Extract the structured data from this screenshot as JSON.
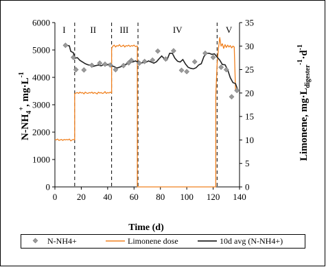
{
  "chart_data": {
    "type": "line",
    "x_axis": {
      "label": "Time (d)",
      "min": 0,
      "max": 140,
      "ticks": [
        0,
        20,
        40,
        60,
        80,
        100,
        120,
        140
      ]
    },
    "y_axis_left": {
      "label_main": "N-NH",
      "label_sub": "4",
      "label_sup": "+",
      "label_tail": ", mg·L",
      "label_tail_sup": "-1",
      "min": 0,
      "max": 6000,
      "ticks": [
        0,
        1000,
        2000,
        3000,
        4000,
        5000,
        6000
      ]
    },
    "y_axis_right": {
      "label_main": "Limonene, mg·L",
      "label_sub": "digester",
      "label_sup1": "-1",
      "label_mid": "·d",
      "label_sup2": "-1",
      "min": 0,
      "max": 35,
      "ticks": [
        0,
        5,
        10,
        15,
        20,
        25,
        30,
        35
      ]
    },
    "phases": [
      {
        "label": "I",
        "x_center": 7
      },
      {
        "label": "II",
        "x_center": 29
      },
      {
        "label": "III",
        "x_center": 52.5
      },
      {
        "label": "IV",
        "x_center": 93
      },
      {
        "label": "V",
        "x_center": 132
      }
    ],
    "phase_boundaries": [
      15,
      43,
      63,
      123
    ],
    "legend": {
      "position": "bottom",
      "items": [
        "N-NH4+",
        "Limonene dose",
        "10d avg (N-NH4+)"
      ]
    },
    "series": [
      {
        "name": "N-NH4+",
        "axis": "left",
        "style": "markers",
        "color": "#999999",
        "points": [
          [
            8,
            5170
          ],
          [
            14,
            4730
          ],
          [
            16,
            4280
          ],
          [
            22,
            4270
          ],
          [
            28,
            4440
          ],
          [
            34,
            4520
          ],
          [
            38,
            4480
          ],
          [
            42,
            4450
          ],
          [
            46,
            4280
          ],
          [
            52,
            4430
          ],
          [
            56,
            4530
          ],
          [
            58,
            4620
          ],
          [
            64,
            4520
          ],
          [
            68,
            4580
          ],
          [
            74,
            4630
          ],
          [
            78,
            4960
          ],
          [
            84,
            4670
          ],
          [
            90,
            4970
          ],
          [
            96,
            4260
          ],
          [
            100,
            4210
          ],
          [
            106,
            4570
          ],
          [
            114,
            4880
          ],
          [
            120,
            4730
          ],
          [
            126,
            4370
          ],
          [
            130,
            4280
          ],
          [
            134,
            3290
          ],
          [
            138,
            3520
          ]
        ]
      },
      {
        "name": "Limonene dose",
        "axis": "right",
        "style": "line",
        "color": "#f0801e",
        "points": [
          [
            0,
            10.1
          ],
          [
            1,
            10.0
          ],
          [
            2,
            10.2
          ],
          [
            3,
            9.9
          ],
          [
            4,
            10.0
          ],
          [
            5,
            10.1
          ],
          [
            6,
            9.9
          ],
          [
            7,
            10.1
          ],
          [
            8,
            10.0
          ],
          [
            9,
            10.1
          ],
          [
            10,
            10.0
          ],
          [
            11,
            10.2
          ],
          [
            12,
            9.8
          ],
          [
            13,
            10.0
          ],
          [
            14,
            10.1
          ],
          [
            15,
            10.0
          ],
          [
            15,
            19.8
          ],
          [
            16,
            20.0
          ],
          [
            17,
            20.1
          ],
          [
            18,
            19.9
          ],
          [
            19,
            20.2
          ],
          [
            20,
            20.0
          ],
          [
            21,
            20.1
          ],
          [
            22,
            19.8
          ],
          [
            23,
            20.2
          ],
          [
            24,
            20.0
          ],
          [
            25,
            19.9
          ],
          [
            26,
            20.1
          ],
          [
            27,
            20.0
          ],
          [
            28,
            20.2
          ],
          [
            29,
            19.9
          ],
          [
            30,
            20.1
          ],
          [
            31,
            20.0
          ],
          [
            32,
            19.8
          ],
          [
            33,
            20.2
          ],
          [
            34,
            20.0
          ],
          [
            35,
            20.1
          ],
          [
            36,
            19.9
          ],
          [
            37,
            20.0
          ],
          [
            38,
            20.3
          ],
          [
            39,
            19.9
          ],
          [
            40,
            20.1
          ],
          [
            41,
            20.0
          ],
          [
            42,
            20.2
          ],
          [
            43,
            20.0
          ],
          [
            43,
            29.5
          ],
          [
            44,
            30.0
          ],
          [
            45,
            30.2
          ],
          [
            46,
            29.8
          ],
          [
            47,
            30.1
          ],
          [
            48,
            30.0
          ],
          [
            49,
            30.3
          ],
          [
            50,
            29.9
          ],
          [
            51,
            30.0
          ],
          [
            52,
            30.2
          ],
          [
            53,
            29.8
          ],
          [
            54,
            30.1
          ],
          [
            55,
            30.0
          ],
          [
            56,
            30.2
          ],
          [
            57,
            29.9
          ],
          [
            58,
            30.1
          ],
          [
            59,
            30.0
          ],
          [
            60,
            30.2
          ],
          [
            61,
            29.9
          ],
          [
            62,
            30.0
          ],
          [
            62.5,
            30.0
          ],
          [
            62.5,
            0
          ],
          [
            122,
            0
          ],
          [
            122,
            19.5
          ],
          [
            123,
            26
          ],
          [
            124,
            29.5
          ],
          [
            125,
            31.8
          ],
          [
            126,
            30.0
          ],
          [
            127,
            30.5
          ],
          [
            128,
            29.5
          ],
          [
            129,
            30.3
          ],
          [
            130,
            29.7
          ],
          [
            131,
            30.2
          ],
          [
            132,
            29.8
          ],
          [
            133,
            30.1
          ],
          [
            134,
            29.6
          ],
          [
            135,
            30.0
          ],
          [
            136,
            29.8
          ],
          [
            137,
            20.5
          ],
          [
            138,
            20.3
          ],
          [
            138,
            20.6
          ]
        ]
      },
      {
        "name": "10d avg (N-NH4+)",
        "axis": "left",
        "style": "line",
        "color": "#222222",
        "points": [
          [
            9,
            5170
          ],
          [
            11,
            5150
          ],
          [
            12,
            4950
          ],
          [
            14,
            4900
          ],
          [
            15,
            4700
          ],
          [
            17,
            4720
          ],
          [
            19,
            4620
          ],
          [
            21,
            4560
          ],
          [
            23,
            4500
          ],
          [
            25,
            4460
          ],
          [
            27,
            4440
          ],
          [
            29,
            4400
          ],
          [
            31,
            4430
          ],
          [
            33,
            4450
          ],
          [
            35,
            4420
          ],
          [
            37,
            4470
          ],
          [
            39,
            4450
          ],
          [
            41,
            4480
          ],
          [
            43,
            4420
          ],
          [
            45,
            4390
          ],
          [
            47,
            4340
          ],
          [
            49,
            4370
          ],
          [
            51,
            4410
          ],
          [
            53,
            4460
          ],
          [
            55,
            4500
          ],
          [
            57,
            4570
          ],
          [
            59,
            4560
          ],
          [
            61,
            4600
          ],
          [
            63,
            4560
          ],
          [
            65,
            4520
          ],
          [
            67,
            4540
          ],
          [
            69,
            4550
          ],
          [
            71,
            4600
          ],
          [
            73,
            4560
          ],
          [
            75,
            4520
          ],
          [
            77,
            4570
          ],
          [
            79,
            4680
          ],
          [
            81,
            4780
          ],
          [
            83,
            4680
          ],
          [
            85,
            4640
          ],
          [
            87,
            4880
          ],
          [
            89,
            4880
          ],
          [
            91,
            4700
          ],
          [
            93,
            4590
          ],
          [
            95,
            4560
          ],
          [
            97,
            4650
          ],
          [
            99,
            4490
          ],
          [
            101,
            4370
          ],
          [
            103,
            4330
          ],
          [
            105,
            4310
          ],
          [
            107,
            4350
          ],
          [
            109,
            4450
          ],
          [
            111,
            4500
          ],
          [
            113,
            4760
          ],
          [
            115,
            4880
          ],
          [
            117,
            4880
          ],
          [
            119,
            4840
          ],
          [
            121,
            4860
          ],
          [
            123,
            4740
          ],
          [
            125,
            4630
          ],
          [
            127,
            4470
          ],
          [
            129,
            4460
          ],
          [
            131,
            4280
          ],
          [
            133,
            3990
          ],
          [
            135,
            3810
          ],
          [
            137,
            3770
          ],
          [
            139,
            3490
          ]
        ]
      }
    ]
  }
}
